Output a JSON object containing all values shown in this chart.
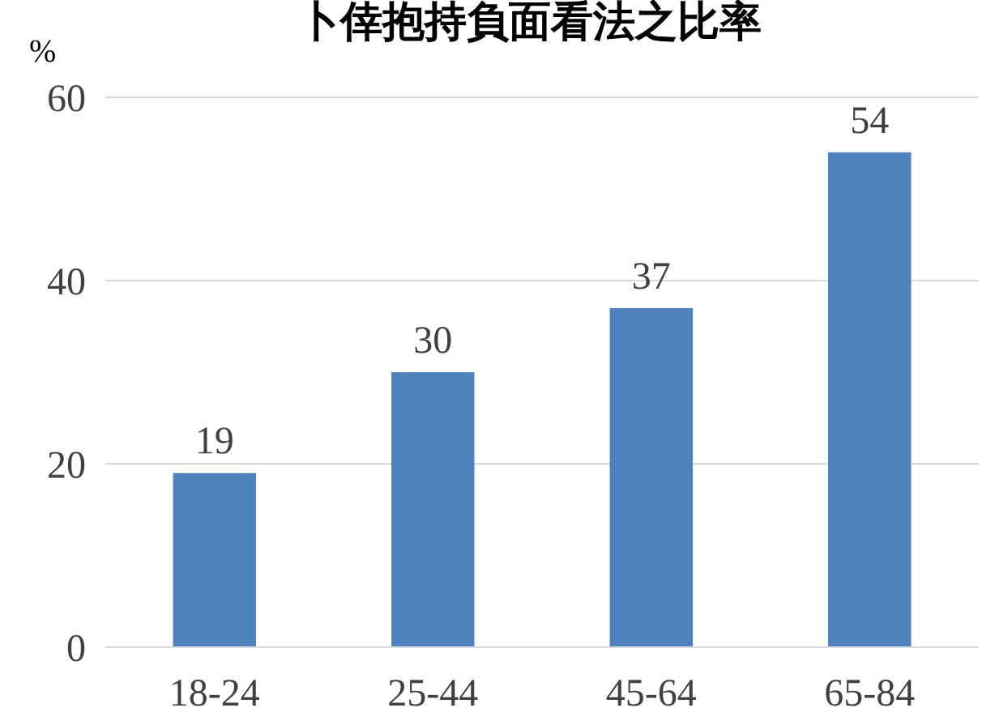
{
  "chart_data": {
    "type": "bar",
    "title": "卜倖抱持負面看法之比率",
    "ylabel": "%",
    "categories": [
      "18-24",
      "25-44",
      "45-64",
      "65-84"
    ],
    "values": [
      19,
      30,
      37,
      54
    ],
    "color": "#4f81bd",
    "ylim": [
      0,
      60
    ],
    "yticks": [
      0,
      20,
      40,
      60
    ],
    "grid": "y",
    "data_labels": true
  }
}
